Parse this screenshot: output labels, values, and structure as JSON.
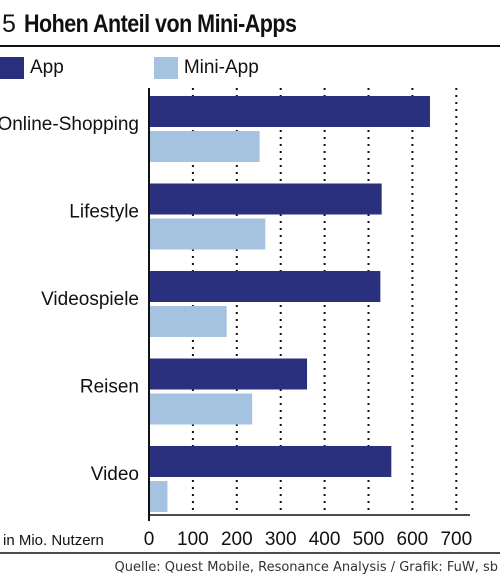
{
  "header": {
    "number": "5",
    "title": "Hohen Anteil von Mini-Apps"
  },
  "legend": [
    {
      "label": "App",
      "color": "#2a2f7e"
    },
    {
      "label": "Mini-App",
      "color": "#a5c3e0"
    }
  ],
  "chart_data": {
    "type": "bar",
    "orientation": "horizontal",
    "categories": [
      "Online-Shopping",
      "Lifestyle",
      "Videospiele",
      "Reisen",
      "Video"
    ],
    "series": [
      {
        "name": "App",
        "values": [
          640,
          530,
          527,
          360,
          552
        ],
        "color": "#2a2f7e"
      },
      {
        "name": "Mini-App",
        "values": [
          252,
          265,
          177,
          235,
          42
        ],
        "color": "#a5c3e0"
      }
    ],
    "xlim": [
      0,
      700
    ],
    "xticks": [
      0,
      100,
      200,
      300,
      400,
      500,
      600,
      700
    ],
    "xlabel": "in Mio. Nutzern",
    "grid": "dotted-vertical",
    "legend_position": "top-left"
  },
  "footer": {
    "source": "Quelle: Quest Mobile, Resonance Analysis / Grafik: FuW, sb"
  }
}
